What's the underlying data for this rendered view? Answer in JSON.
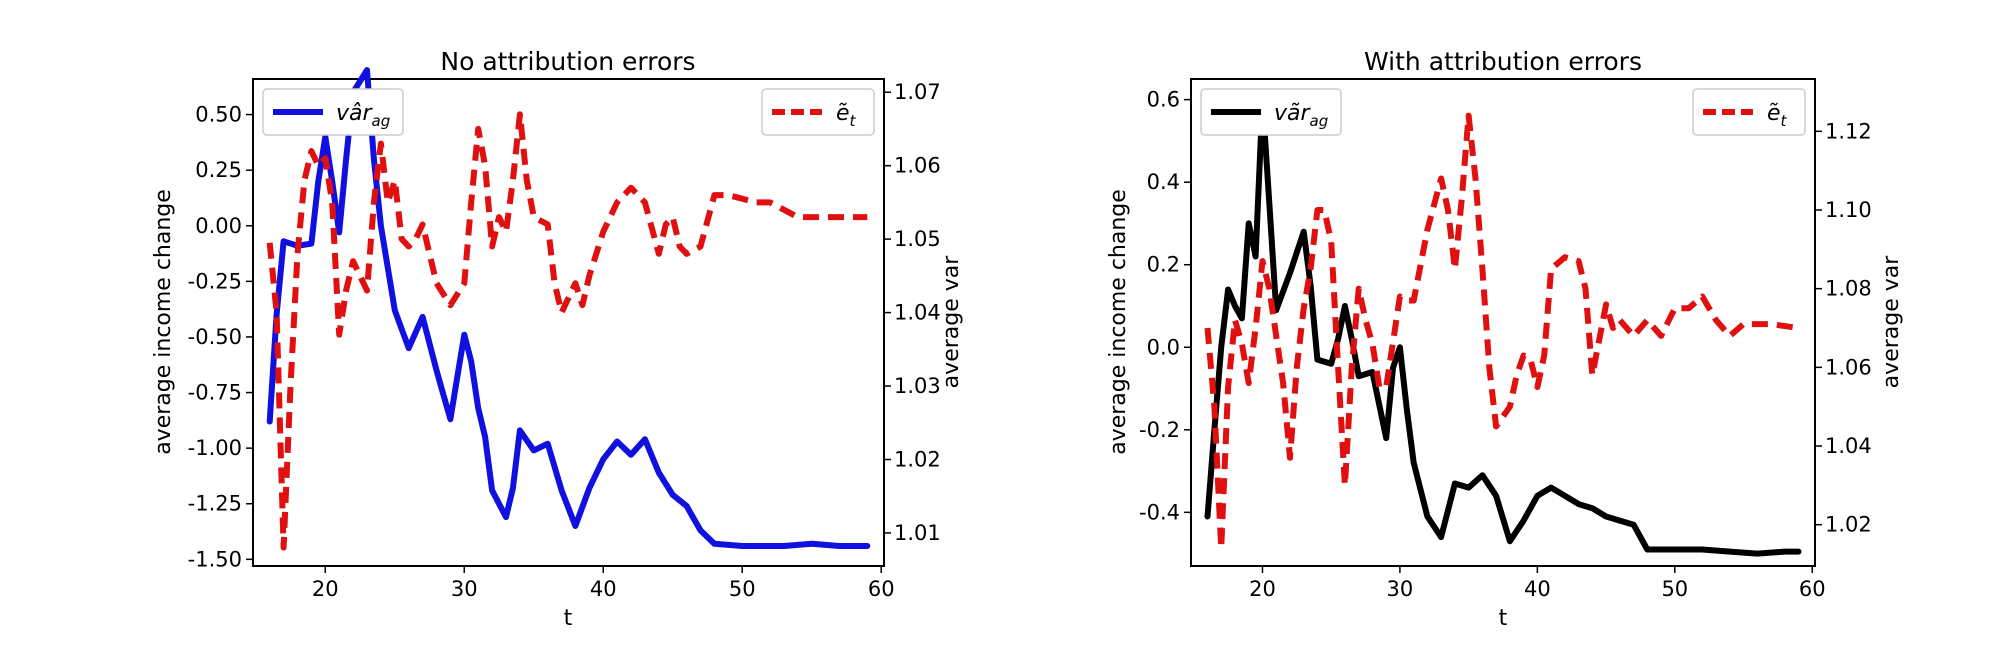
{
  "chart_data": [
    {
      "type": "line",
      "title": "No attribution errors",
      "xlabel": "t",
      "ylabel_left": "average income change",
      "ylabel_right": "average var",
      "xlim": [
        14.8,
        60.2
      ],
      "ylim_left": [
        -1.53,
        0.66
      ],
      "ylim_right": [
        1.0055,
        1.0718
      ],
      "xticks": [
        20,
        30,
        40,
        50,
        60
      ],
      "yticks_left": [
        "0.50",
        "0.25",
        "0.00",
        "-0.25",
        "-0.50",
        "-0.75",
        "-1.00",
        "-1.25",
        "-1.50"
      ],
      "yticks_right": [
        "1.07",
        "1.06",
        "1.05",
        "1.04",
        "1.03",
        "1.02",
        "1.01"
      ],
      "legend_left": {
        "label": "vâr",
        "sub": "ag",
        "color": "#1010e0",
        "placement": "upper-left"
      },
      "legend_right": {
        "label": "ẽ",
        "sub": "t",
        "color": "#e01010",
        "placement": "upper-right"
      },
      "series": [
        {
          "axis": "left",
          "color": "#1010e0",
          "style": "solid",
          "x": [
            16,
            16.5,
            17,
            18,
            19,
            19.5,
            20,
            20.5,
            21,
            21.5,
            22,
            23,
            23.5,
            24,
            25,
            26,
            27,
            28,
            28.5,
            29,
            29.5,
            30,
            30.5,
            31,
            31.5,
            32,
            33,
            33.5,
            34,
            35,
            36,
            37,
            38,
            39,
            40,
            41,
            42,
            43,
            44,
            45,
            46,
            47,
            48,
            50,
            53,
            55,
            57,
            59
          ],
          "y": [
            -0.88,
            -0.4,
            -0.07,
            -0.09,
            -0.08,
            0.2,
            0.4,
            0.2,
            -0.03,
            0.3,
            0.6,
            0.7,
            0.3,
            0.0,
            -0.38,
            -0.55,
            -0.41,
            -0.65,
            -0.76,
            -0.87,
            -0.68,
            -0.49,
            -0.61,
            -0.82,
            -0.95,
            -1.19,
            -1.31,
            -1.18,
            -0.92,
            -1.01,
            -0.98,
            -1.19,
            -1.35,
            -1.18,
            -1.05,
            -0.97,
            -1.03,
            -0.96,
            -1.11,
            -1.21,
            -1.26,
            -1.37,
            -1.43,
            -1.44,
            -1.44,
            -1.43,
            -1.44,
            -1.44
          ]
        },
        {
          "axis": "right",
          "color": "#e01010",
          "style": "dashed",
          "x": [
            16,
            16.5,
            17,
            17.5,
            18,
            18.5,
            19,
            19.5,
            20,
            20.5,
            21,
            21.5,
            22,
            22.5,
            23,
            23.5,
            24,
            24.5,
            25,
            25.5,
            26,
            26.5,
            27,
            27.5,
            28,
            29,
            30,
            30.5,
            31,
            31.5,
            32,
            32.5,
            33,
            33.5,
            34,
            34.5,
            35,
            36,
            36.5,
            37,
            38,
            38.5,
            39,
            40,
            41,
            42,
            43,
            44,
            44.5,
            45,
            45.5,
            46,
            47,
            48,
            49,
            50,
            51,
            52,
            53,
            54,
            55,
            57,
            59
          ],
          "y": [
            1.0495,
            1.04,
            1.008,
            1.03,
            1.048,
            1.058,
            1.062,
            1.06,
            1.061,
            1.055,
            1.037,
            1.043,
            1.047,
            1.045,
            1.043,
            1.055,
            1.063,
            1.055,
            1.058,
            1.05,
            1.049,
            1.05,
            1.052,
            1.048,
            1.044,
            1.041,
            1.044,
            1.055,
            1.065,
            1.06,
            1.049,
            1.053,
            1.051,
            1.058,
            1.067,
            1.058,
            1.053,
            1.052,
            1.044,
            1.04,
            1.044,
            1.041,
            1.045,
            1.051,
            1.055,
            1.057,
            1.055,
            1.048,
            1.052,
            1.053,
            1.049,
            1.048,
            1.049,
            1.056,
            1.056,
            1.0555,
            1.055,
            1.055,
            1.054,
            1.053,
            1.053,
            1.053,
            1.053
          ]
        }
      ]
    },
    {
      "type": "line",
      "title": "With attribution errors",
      "xlabel": "t",
      "ylabel_left": "average income change",
      "ylabel_right": "average var",
      "xlim": [
        14.8,
        60.2
      ],
      "ylim_left": [
        -0.53,
        0.65
      ],
      "ylim_right": [
        1.0095,
        1.1333
      ],
      "xticks": [
        20,
        30,
        40,
        50,
        60
      ],
      "yticks_left": [
        "0.6",
        "0.4",
        "0.2",
        "0.0",
        "-0.2",
        "-0.4"
      ],
      "yticks_right": [
        "1.12",
        "1.10",
        "1.08",
        "1.06",
        "1.04",
        "1.02"
      ],
      "legend_left": {
        "label": "vãr",
        "sub": "ag",
        "color": "#000000",
        "placement": "upper-left"
      },
      "legend_right": {
        "label": "ẽ",
        "sub": "t",
        "color": "#e01010",
        "placement": "upper-right"
      },
      "series": [
        {
          "axis": "left",
          "color": "#000000",
          "style": "solid",
          "x": [
            16,
            16.5,
            17,
            17.5,
            18,
            18.5,
            19,
            19.5,
            20,
            20.5,
            21,
            22,
            23,
            23.5,
            24,
            25,
            25.5,
            26,
            26.5,
            27,
            28,
            29,
            29.5,
            30,
            30.5,
            31,
            32,
            33,
            34,
            35,
            36,
            37,
            38,
            39,
            40,
            41,
            42,
            43,
            44,
            45,
            46,
            47,
            48,
            50,
            51,
            52,
            54,
            56,
            58,
            59
          ],
          "y": [
            -0.41,
            -0.2,
            0.0,
            0.14,
            0.1,
            0.07,
            0.3,
            0.22,
            0.6,
            0.35,
            0.09,
            0.18,
            0.28,
            0.15,
            -0.03,
            -0.04,
            0.02,
            0.1,
            0.02,
            -0.07,
            -0.06,
            -0.22,
            -0.05,
            0.0,
            -0.15,
            -0.28,
            -0.41,
            -0.46,
            -0.33,
            -0.34,
            -0.31,
            -0.36,
            -0.47,
            -0.42,
            -0.36,
            -0.34,
            -0.36,
            -0.38,
            -0.39,
            -0.41,
            -0.42,
            -0.43,
            -0.49,
            -0.49,
            -0.49,
            -0.49,
            -0.495,
            -0.5,
            -0.495,
            -0.495
          ]
        },
        {
          "axis": "right",
          "color": "#e01010",
          "style": "dashed",
          "x": [
            16,
            16.5,
            17,
            17.5,
            18,
            18.5,
            19,
            19.5,
            20,
            20.5,
            21,
            21.5,
            22,
            22.5,
            23,
            23.5,
            24,
            24.5,
            25,
            25.5,
            26,
            26.5,
            27,
            27.5,
            28,
            28.5,
            29,
            30,
            30.5,
            31,
            32,
            33,
            33.5,
            34,
            34.5,
            35,
            35.5,
            36,
            36.5,
            37,
            38,
            38.5,
            39,
            39.5,
            40,
            40.5,
            41,
            42,
            43,
            43.5,
            44,
            44.5,
            45,
            45.5,
            46,
            47,
            48,
            49,
            50,
            51,
            52,
            53,
            54,
            55,
            57,
            59
          ],
          "y": [
            1.07,
            1.05,
            1.014,
            1.055,
            1.072,
            1.066,
            1.056,
            1.07,
            1.087,
            1.08,
            1.068,
            1.056,
            1.037,
            1.06,
            1.075,
            1.085,
            1.1,
            1.1,
            1.092,
            1.06,
            1.03,
            1.06,
            1.08,
            1.072,
            1.066,
            1.055,
            1.055,
            1.078,
            1.077,
            1.077,
            1.095,
            1.108,
            1.1,
            1.085,
            1.103,
            1.124,
            1.108,
            1.085,
            1.06,
            1.045,
            1.05,
            1.058,
            1.063,
            1.062,
            1.055,
            1.063,
            1.085,
            1.088,
            1.087,
            1.08,
            1.058,
            1.067,
            1.076,
            1.07,
            1.072,
            1.068,
            1.072,
            1.068,
            1.075,
            1.075,
            1.078,
            1.072,
            1.068,
            1.071,
            1.071,
            1.07
          ]
        }
      ]
    }
  ]
}
